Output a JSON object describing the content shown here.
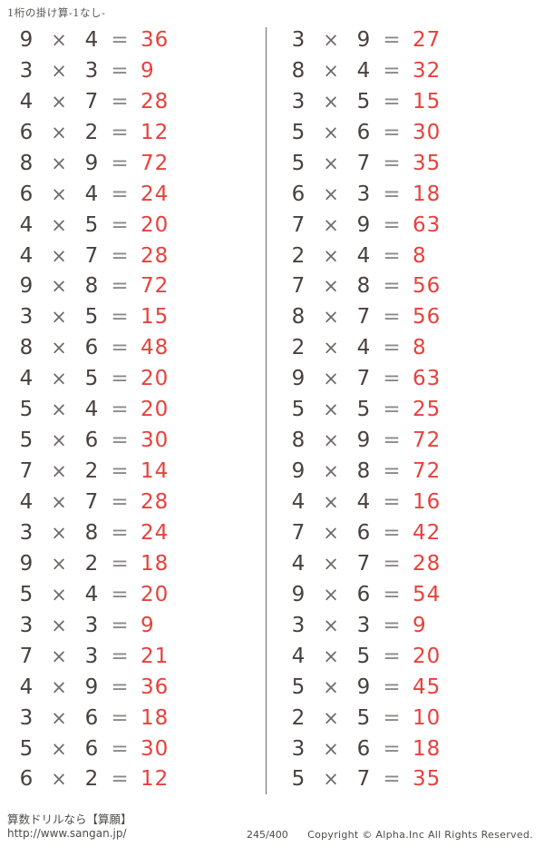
{
  "page": {
    "title": "1桁の掛け算-1なし-"
  },
  "colors": {
    "operand": "#474140",
    "times": "#6f6a6a",
    "equals": "#8d8889",
    "answer": "#e8413c",
    "divider": "#6e696a"
  },
  "symbols": {
    "times": "×",
    "equals": "="
  },
  "columns": [
    {
      "problems": [
        {
          "a": 9,
          "b": 4,
          "answer": 36
        },
        {
          "a": 3,
          "b": 3,
          "answer": 9
        },
        {
          "a": 4,
          "b": 7,
          "answer": 28
        },
        {
          "a": 6,
          "b": 2,
          "answer": 12
        },
        {
          "a": 8,
          "b": 9,
          "answer": 72
        },
        {
          "a": 6,
          "b": 4,
          "answer": 24
        },
        {
          "a": 4,
          "b": 5,
          "answer": 20
        },
        {
          "a": 4,
          "b": 7,
          "answer": 28
        },
        {
          "a": 9,
          "b": 8,
          "answer": 72
        },
        {
          "a": 3,
          "b": 5,
          "answer": 15
        },
        {
          "a": 8,
          "b": 6,
          "answer": 48
        },
        {
          "a": 4,
          "b": 5,
          "answer": 20
        },
        {
          "a": 5,
          "b": 4,
          "answer": 20
        },
        {
          "a": 5,
          "b": 6,
          "answer": 30
        },
        {
          "a": 7,
          "b": 2,
          "answer": 14
        },
        {
          "a": 4,
          "b": 7,
          "answer": 28
        },
        {
          "a": 3,
          "b": 8,
          "answer": 24
        },
        {
          "a": 9,
          "b": 2,
          "answer": 18
        },
        {
          "a": 5,
          "b": 4,
          "answer": 20
        },
        {
          "a": 3,
          "b": 3,
          "answer": 9
        },
        {
          "a": 7,
          "b": 3,
          "answer": 21
        },
        {
          "a": 4,
          "b": 9,
          "answer": 36
        },
        {
          "a": 3,
          "b": 6,
          "answer": 18
        },
        {
          "a": 5,
          "b": 6,
          "answer": 30
        },
        {
          "a": 6,
          "b": 2,
          "answer": 12
        }
      ]
    },
    {
      "problems": [
        {
          "a": 3,
          "b": 9,
          "answer": 27
        },
        {
          "a": 8,
          "b": 4,
          "answer": 32
        },
        {
          "a": 3,
          "b": 5,
          "answer": 15
        },
        {
          "a": 5,
          "b": 6,
          "answer": 30
        },
        {
          "a": 5,
          "b": 7,
          "answer": 35
        },
        {
          "a": 6,
          "b": 3,
          "answer": 18
        },
        {
          "a": 7,
          "b": 9,
          "answer": 63
        },
        {
          "a": 2,
          "b": 4,
          "answer": 8
        },
        {
          "a": 7,
          "b": 8,
          "answer": 56
        },
        {
          "a": 8,
          "b": 7,
          "answer": 56
        },
        {
          "a": 2,
          "b": 4,
          "answer": 8
        },
        {
          "a": 9,
          "b": 7,
          "answer": 63
        },
        {
          "a": 5,
          "b": 5,
          "answer": 25
        },
        {
          "a": 8,
          "b": 9,
          "answer": 72
        },
        {
          "a": 9,
          "b": 8,
          "answer": 72
        },
        {
          "a": 4,
          "b": 4,
          "answer": 16
        },
        {
          "a": 7,
          "b": 6,
          "answer": 42
        },
        {
          "a": 4,
          "b": 7,
          "answer": 28
        },
        {
          "a": 9,
          "b": 6,
          "answer": 54
        },
        {
          "a": 3,
          "b": 3,
          "answer": 9
        },
        {
          "a": 4,
          "b": 5,
          "answer": 20
        },
        {
          "a": 5,
          "b": 9,
          "answer": 45
        },
        {
          "a": 2,
          "b": 5,
          "answer": 10
        },
        {
          "a": 3,
          "b": 6,
          "answer": 18
        },
        {
          "a": 5,
          "b": 7,
          "answer": 35
        }
      ]
    }
  ],
  "footer": {
    "site_name": "算数ドリルなら【算願】",
    "site_url": "http://www.sangan.jp/",
    "page_number": "245/400",
    "copyright": "Copyright © Alpha.Inc All Rights Reserved."
  }
}
